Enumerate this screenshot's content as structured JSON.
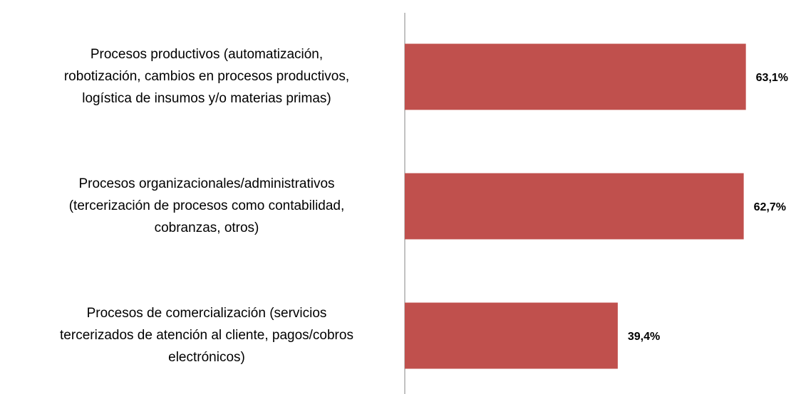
{
  "chart_data": {
    "type": "bar",
    "orientation": "horizontal",
    "categories": [
      [
        "Procesos productivos (automatización,",
        "robotización, cambios en procesos productivos,",
        "logística de insumos y/o materias primas)"
      ],
      [
        "Procesos organizacionales/administrativos",
        "(tercerización de procesos como contabilidad,",
        "cobranzas, otros)"
      ],
      [
        "Procesos de comercialización (servicios",
        "tercerizados de atención al cliente, pagos/cobros",
        "electrónicos)"
      ]
    ],
    "values": [
      63.1,
      62.7,
      39.4
    ],
    "value_labels": [
      "63,1%",
      "62,7%",
      "39,4%"
    ],
    "color": "#c0504d",
    "xlim": [
      0,
      70
    ]
  }
}
